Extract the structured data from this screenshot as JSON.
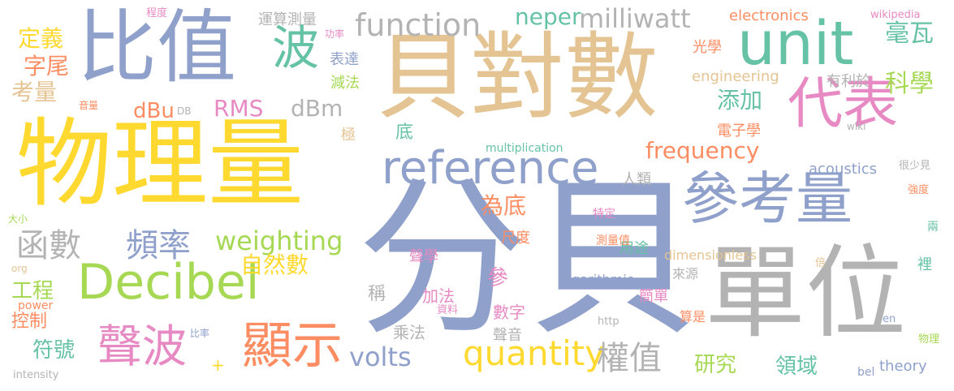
{
  "words": [
    {
      "text": "分貝",
      "color": "#8FA0CB",
      "vertical": false
    },
    {
      "text": "物理量",
      "color": "#FFD92F",
      "vertical": false
    },
    {
      "text": "貝對數",
      "color": "#E5C494",
      "vertical": false
    },
    {
      "text": "單位",
      "color": "#B3B3B3",
      "vertical": false
    },
    {
      "text": "比值",
      "color": "#8FA0CB",
      "vertical": false
    },
    {
      "text": "unit",
      "color": "#66C2A5",
      "vertical": false
    },
    {
      "text": "參考量",
      "color": "#8FA0CB",
      "vertical": false
    },
    {
      "text": "reference",
      "color": "#8FA0CB",
      "vertical": false
    },
    {
      "text": "Decibel",
      "color": "#A6D854",
      "vertical": false
    },
    {
      "text": "代表",
      "color": "#E78AC3",
      "vertical": false
    },
    {
      "text": "顯示",
      "color": "#FC8D62",
      "vertical": false
    },
    {
      "text": "聲波",
      "color": "#E78AC3",
      "vertical": false
    },
    {
      "text": "quantity",
      "color": "#FFD92F",
      "vertical": false
    },
    {
      "text": "波",
      "color": "#66C2A5",
      "vertical": false
    },
    {
      "text": "函數",
      "color": "#B3B3B3",
      "vertical": false
    },
    {
      "text": "頻率",
      "color": "#8FA0CB",
      "vertical": false
    },
    {
      "text": "function",
      "color": "#B3B3B3",
      "vertical": false
    },
    {
      "text": "weighting",
      "color": "#A6D854",
      "vertical": false
    },
    {
      "text": "權值",
      "color": "#B3B3B3",
      "vertical": false
    },
    {
      "text": "frequency",
      "color": "#FC8D62",
      "vertical": false
    },
    {
      "text": "milliwatt",
      "color": "#B3B3B3",
      "vertical": false
    },
    {
      "text": "neper",
      "color": "#66C2A5",
      "vertical": false
    },
    {
      "text": "volts",
      "color": "#8FA0CB",
      "vertical": false
    },
    {
      "text": "毫瓦",
      "color": "#66C2A5",
      "vertical": false
    },
    {
      "text": "科學",
      "color": "#A6D854",
      "vertical": false
    },
    {
      "text": "RMS",
      "color": "#E78AC3",
      "vertical": false
    },
    {
      "text": "dBm",
      "color": "#B3B3B3",
      "vertical": false
    },
    {
      "text": "dBu",
      "color": "#FC8D62",
      "vertical": false
    },
    {
      "text": "定義",
      "color": "#FFD92F",
      "vertical": false
    },
    {
      "text": "字尾",
      "color": "#FC8D62",
      "vertical": false
    },
    {
      "text": "考量",
      "color": "#E5C494",
      "vertical": false
    },
    {
      "text": "添加",
      "color": "#66C2A5",
      "vertical": false
    },
    {
      "text": "自然數",
      "color": "#FFD92F",
      "vertical": false
    },
    {
      "text": "為底",
      "color": "#FC8D62",
      "vertical": false
    },
    {
      "text": "研究",
      "color": "#A6D854",
      "vertical": false
    },
    {
      "text": "領域",
      "color": "#66C2A5",
      "vertical": false
    },
    {
      "text": "符號",
      "color": "#66C2A5",
      "vertical": false
    },
    {
      "text": "工程",
      "color": "#A6D854",
      "vertical": false
    },
    {
      "text": "控制",
      "color": "#FC8D62",
      "vertical": false
    },
    {
      "text": "acoustics",
      "color": "#8FA0CB",
      "vertical": false
    },
    {
      "text": "theory",
      "color": "#8FA0CB",
      "vertical": false
    },
    {
      "text": "electronics",
      "color": "#FC8D62",
      "vertical": false
    },
    {
      "text": "engineering",
      "color": "#E5C494",
      "vertical": false
    },
    {
      "text": "運算測量",
      "color": "#B3B3B3",
      "vertical": false
    },
    {
      "text": "表達",
      "color": "#8FA0CB",
      "vertical": false
    },
    {
      "text": "減法",
      "color": "#A6D854",
      "vertical": false
    },
    {
      "text": "有利於",
      "color": "#B3B3B3",
      "vertical": false
    },
    {
      "text": "光學",
      "color": "#FC8D62",
      "vertical": false
    },
    {
      "text": "電子學",
      "color": "#FC8D62",
      "vertical": false
    },
    {
      "text": "人類",
      "color": "#B3B3B3",
      "vertical": false
    },
    {
      "text": "底",
      "color": "#66C2A5",
      "vertical": false
    },
    {
      "text": "極",
      "color": "#E5C494",
      "vertical": false
    },
    {
      "text": "稱",
      "color": "#B3B3B3",
      "vertical": false
    },
    {
      "text": "參",
      "color": "#E78AC3",
      "vertical": false
    },
    {
      "text": "加法",
      "color": "#E78AC3",
      "vertical": false
    },
    {
      "text": "數字",
      "color": "#E78AC3",
      "vertical": false
    },
    {
      "text": "聲音",
      "color": "#B3B3B3",
      "vertical": false
    },
    {
      "text": "乘法",
      "color": "#B3B3B3",
      "vertical": false
    },
    {
      "text": "聲學",
      "color": "#E78AC3",
      "vertical": false
    },
    {
      "text": "尺度",
      "color": "#FC8D62",
      "vertical": false
    },
    {
      "text": "用途",
      "color": "#66C2A5",
      "vertical": false
    },
    {
      "text": "簡單",
      "color": "#E78AC3",
      "vertical": false
    },
    {
      "text": "算是",
      "color": "#FC8D62",
      "vertical": false
    },
    {
      "text": "裡",
      "color": "#66C2A5",
      "vertical": false
    },
    {
      "text": "來源",
      "color": "#B3B3B3",
      "vertical": false
    },
    {
      "text": "dimensionless",
      "color": "#E5C494",
      "vertical": false
    },
    {
      "text": "logarithmic",
      "color": "#8FA0CB",
      "vertical": false
    },
    {
      "text": "multiplication",
      "color": "#66C2A5",
      "vertical": false
    },
    {
      "text": "wiki",
      "color": "#B3B3B3",
      "vertical": false
    },
    {
      "text": "wikipedia",
      "color": "#E78AC3",
      "vertical": false
    },
    {
      "text": "很少見",
      "color": "#B3B3B3",
      "vertical": false
    },
    {
      "text": "強度",
      "color": "#FC8D62",
      "vertical": false
    },
    {
      "text": "兩",
      "color": "#66C2A5",
      "vertical": false
    },
    {
      "text": "倍",
      "color": "#E5C494",
      "vertical": false
    },
    {
      "text": "en",
      "color": "#8FA0CB",
      "vertical": false
    },
    {
      "text": "物理",
      "color": "#A6D854",
      "vertical": false
    },
    {
      "text": "bel",
      "color": "#8FA0CB",
      "vertical": false
    },
    {
      "text": "http",
      "color": "#B3B3B3",
      "vertical": false
    },
    {
      "text": "特定",
      "color": "#E78AC3",
      "vertical": false
    },
    {
      "text": "測量值",
      "color": "#FC8D62",
      "vertical": false
    },
    {
      "text": "資料",
      "color": "#E78AC3",
      "vertical": false
    },
    {
      "text": "程度",
      "color": "#E78AC3",
      "vertical": false
    },
    {
      "text": "功率",
      "color": "#E78AC3",
      "vertical": false
    },
    {
      "text": "音量",
      "color": "#FC8D62",
      "vertical": false
    },
    {
      "text": "DB",
      "color": "#B3B3B3",
      "vertical": false
    },
    {
      "text": "大小",
      "color": "#A6D854",
      "vertical": false
    },
    {
      "text": "org",
      "color": "#E5C494",
      "vertical": false
    },
    {
      "text": "power",
      "color": "#FC8D62",
      "vertical": false
    },
    {
      "text": "比率",
      "color": "#8FA0CB",
      "vertical": false
    },
    {
      "text": "intensity",
      "color": "#B3B3B3",
      "vertical": false
    },
    {
      "text": "+",
      "color": "#FFD92F",
      "vertical": false
    }
  ]
}
